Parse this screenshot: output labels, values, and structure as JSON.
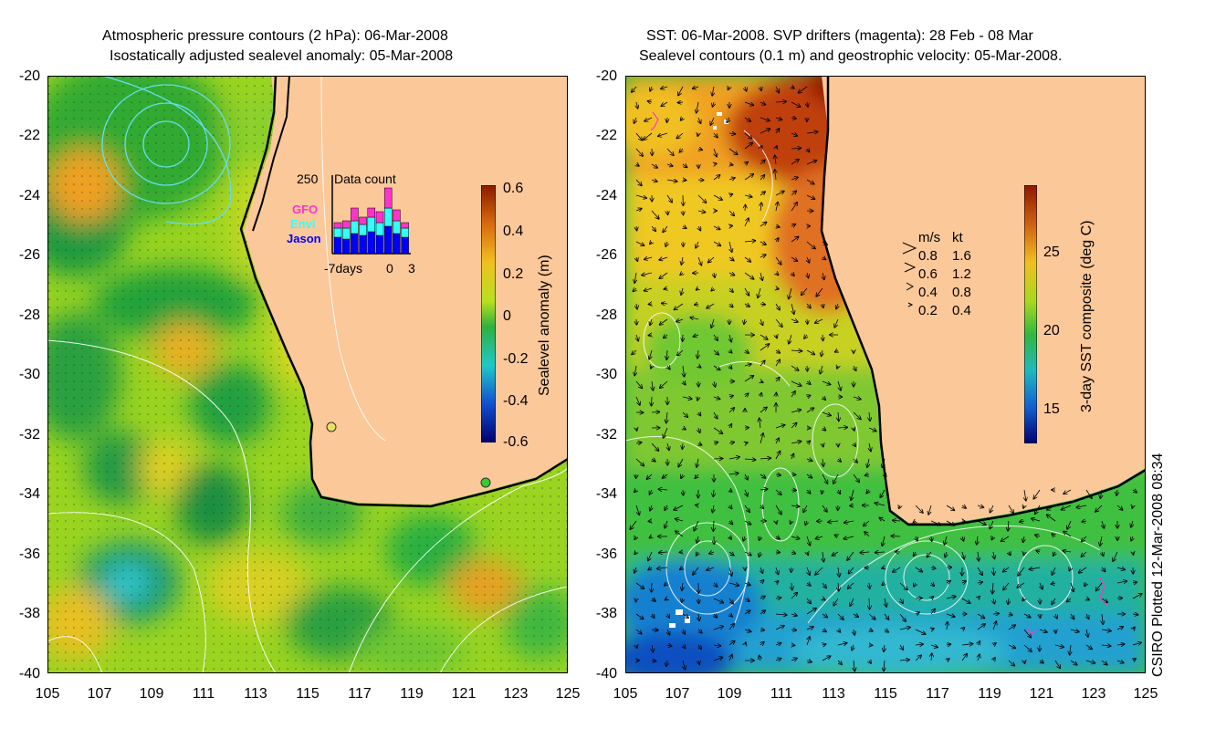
{
  "left_panel": {
    "title_line1": "Atmospheric pressure contours (2 hPa): 06-Mar-2008",
    "title_line2": "Isostatically adjusted sealevel anomaly: 05-Mar-2008",
    "colorbar_label": "Sealevel anomaly (m)",
    "colorbar_ticks": [
      "0.6",
      "0.4",
      "0.2",
      "0",
      "-0.2",
      "-0.4",
      "-0.6"
    ],
    "inset": {
      "ymax_label": "250",
      "title": "Data count",
      "series": [
        "GFO",
        "Envi",
        "Jason"
      ],
      "series_colors": {
        "GFO": "#ff33cc",
        "Envi": "#33ffff",
        "Jason": "#0000ff"
      },
      "x_labels": [
        "-7days",
        "0",
        "3"
      ]
    }
  },
  "right_panel": {
    "title_line1": "SST: 06-Mar-2008. SVP drifters (magenta): 28 Feb - 08 Mar",
    "title_line2": "Sealevel contours (0.1 m) and geostrophic velocity: 05-Mar-2008.",
    "colorbar_label": "3-day SST composite (deg C)",
    "colorbar_ticks": [
      "25",
      "20",
      "15"
    ],
    "speed_legend": {
      "header_ms": "m/s",
      "header_kt": "kt",
      "rows": [
        {
          "ms": "0.8",
          "kt": "1.6"
        },
        {
          "ms": "0.6",
          "kt": "1.2"
        },
        {
          "ms": "0.4",
          "kt": "0.8"
        },
        {
          "ms": "0.2",
          "kt": "0.4"
        }
      ]
    }
  },
  "y_ticks": [
    "-20",
    "-22",
    "-24",
    "-26",
    "-28",
    "-30",
    "-32",
    "-34",
    "-36",
    "-38",
    "-40"
  ],
  "x_ticks": [
    "105",
    "107",
    "109",
    "111",
    "113",
    "115",
    "117",
    "119",
    "121",
    "123",
    "125"
  ],
  "credit": "CSIRO Plotted 12-Mar-2008 08:34",
  "colors": {
    "land": "#fbc89a",
    "coast": "#000000"
  }
}
